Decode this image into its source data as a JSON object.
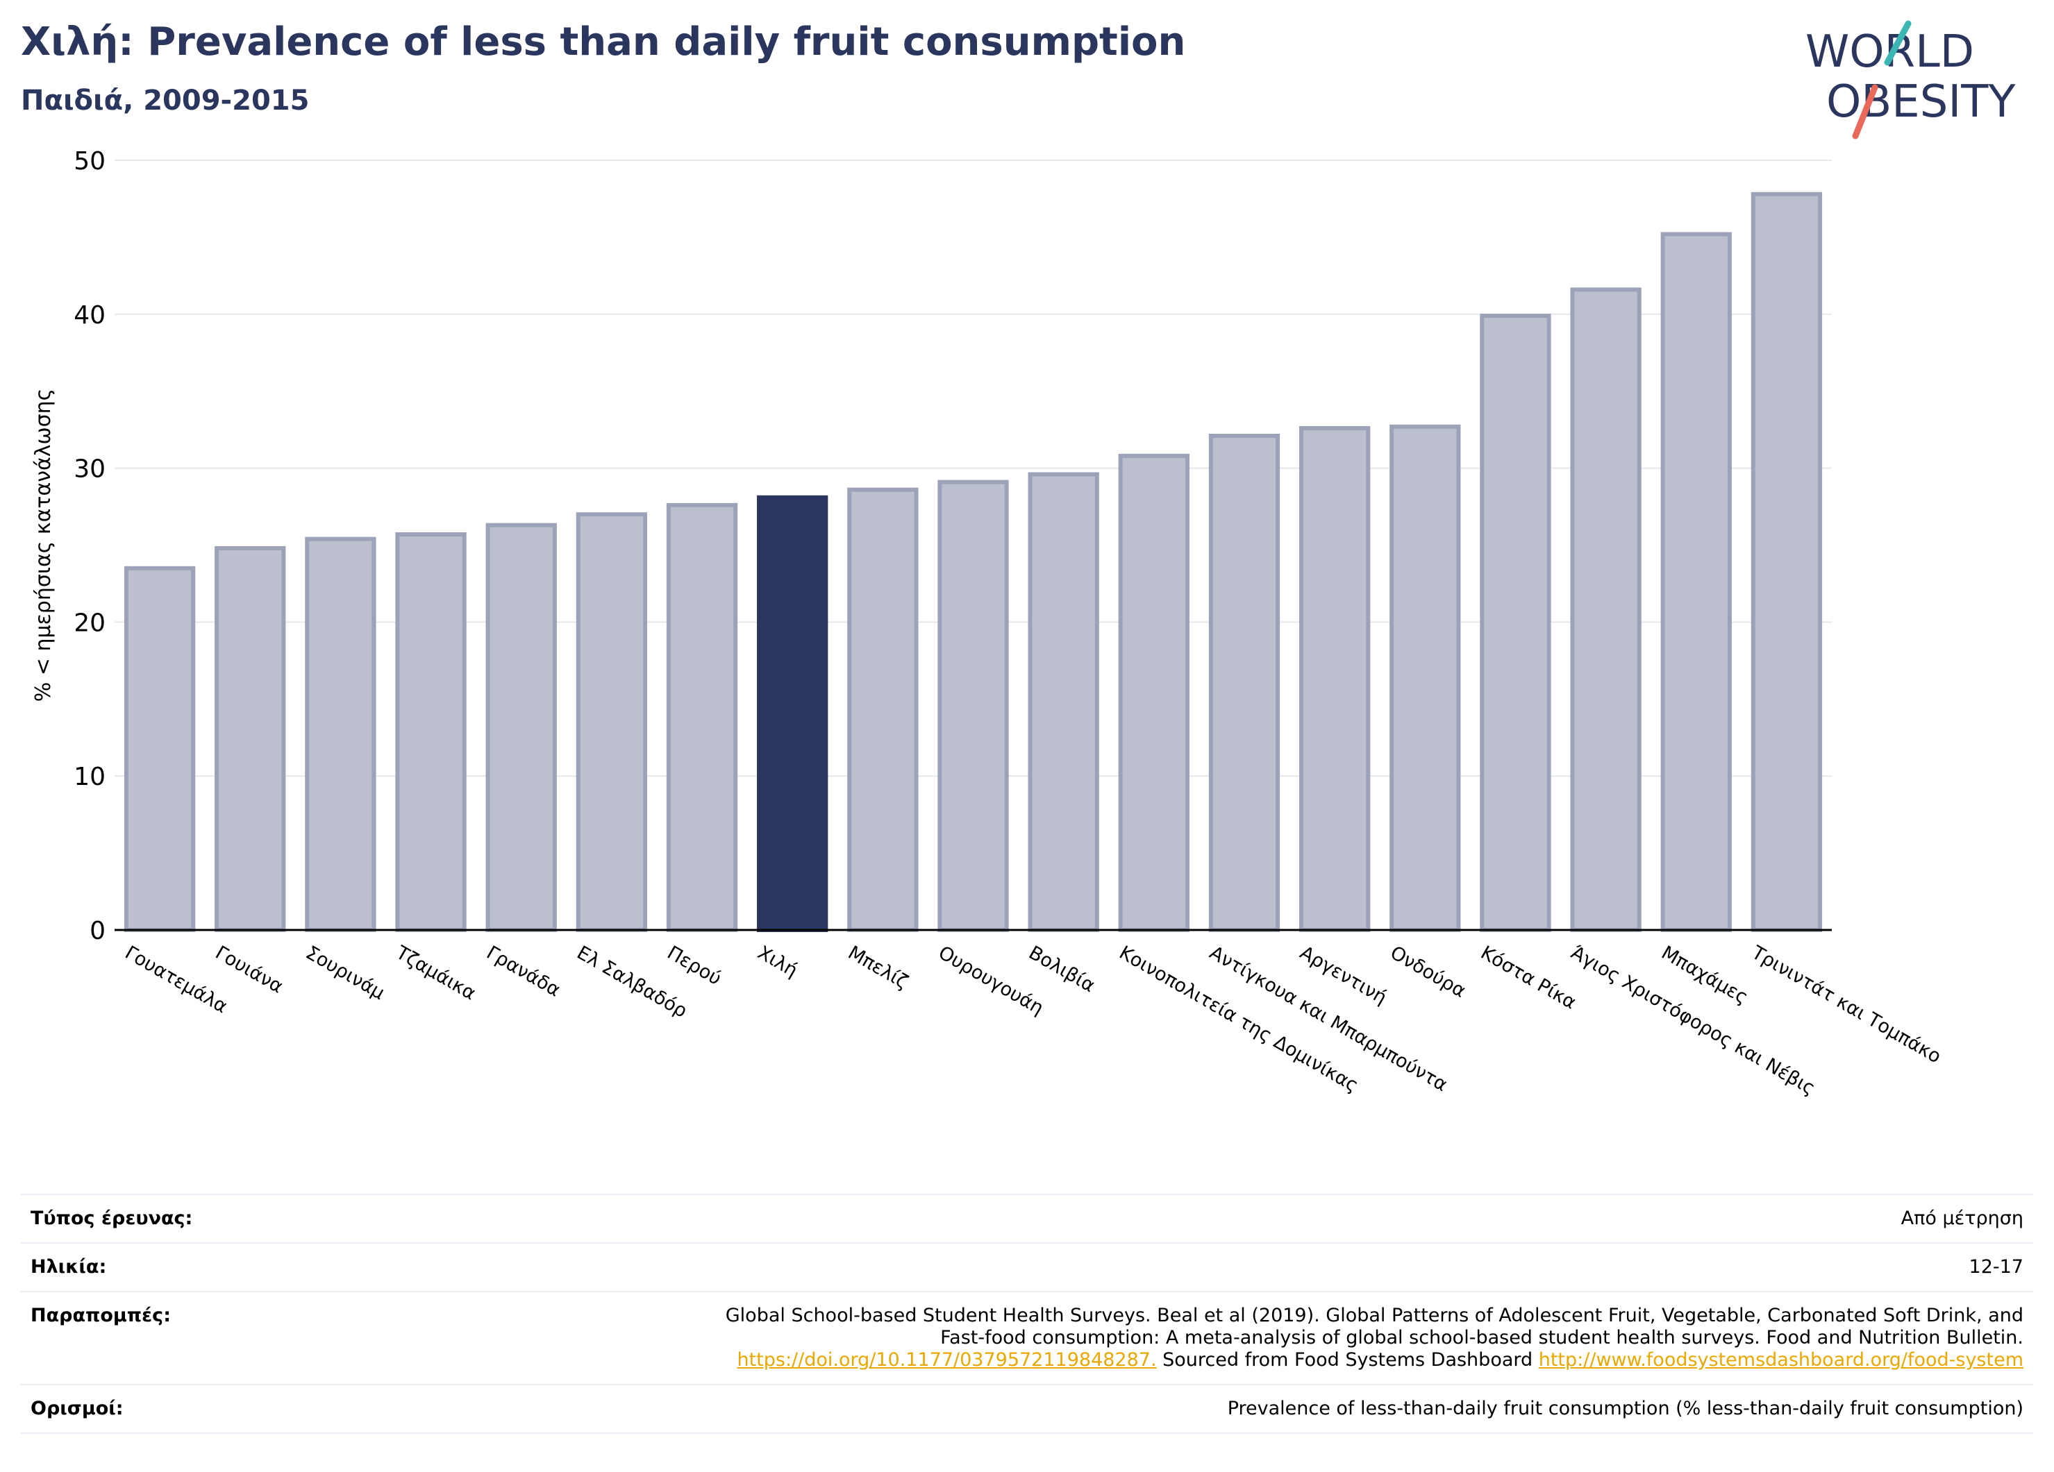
{
  "header": {
    "title": "Χιλή: Prevalence of less than daily fruit consumption",
    "subtitle": "Παιδιά, 2009-2015"
  },
  "logo": {
    "line1": "WORLD",
    "line2": "OBESITY",
    "color_text": "#2b365e",
    "color_slash_top": "#3bb6b4",
    "color_slash_bottom": "#e8695a"
  },
  "chart_data": {
    "type": "bar",
    "title": "Χιλή: Prevalence of less than daily fruit consumption",
    "subtitle": "Παιδιά, 2009-2015",
    "ylabel": "% < ημερήσιας κατανάλωσης",
    "xlabel": "",
    "ylim": [
      0,
      50
    ],
    "yticks": [
      0,
      10,
      20,
      30,
      40,
      50
    ],
    "grid": true,
    "highlight": "Χιλή",
    "colors": {
      "bar": "#bcc0ce",
      "bar_edge": "#9ca2b8",
      "highlight": "#2b365e",
      "axis": "#000000",
      "grid": "#e6e8ee"
    },
    "categories": [
      "Γουατεμάλα",
      "Γουιάνα",
      "Σουρινάμ",
      "Τζαμάικα",
      "Γρανάδα",
      "Ελ Σαλβαδόρ",
      "Περού",
      "Χιλή",
      "Μπελίζ",
      "Ουρουγουάη",
      "Βολιβία",
      "Κοινοπολιτεία της Δομινίκας",
      "Αντίγκουα και Μπαρμπούντα",
      "Αργεντινή",
      "Ονδούρα",
      "Κόστα Ρίκα",
      "Άγιος Χριστόφορος και Νέβις",
      "Μπαχάμες",
      "Τρινιντάτ και Τομπάκο"
    ],
    "values": [
      23.5,
      24.8,
      25.4,
      25.7,
      26.3,
      27.0,
      27.6,
      28.1,
      28.6,
      29.1,
      29.6,
      30.8,
      32.1,
      32.6,
      32.7,
      39.9,
      41.6,
      45.2,
      47.8
    ]
  },
  "metadata": {
    "rows": [
      {
        "key": "Τύπος έρευνας:",
        "value": "Από μέτρηση"
      },
      {
        "key": "Ηλικία:",
        "value": "12-17"
      },
      {
        "key": "Παραπομπές:",
        "line1": "Global School-based Student Health Surveys. Beal et al (2019). Global Patterns of Adolescent Fruit, Vegetable, Carbonated Soft Drink, and",
        "line2": "Fast-food consumption: A meta-analysis of global school-based student health surveys. Food and Nutrition Bulletin.",
        "link1": "https://doi.org/10.1177/0379572119848287.",
        "middle": " Sourced from Food Systems Dashboard ",
        "link2": "http://www.foodsystemsdashboard.org/food-system"
      },
      {
        "key": "Ορισμοί:",
        "value": "Prevalence of less-than-daily fruit consumption (% less-than-daily fruit consumption)"
      }
    ]
  }
}
